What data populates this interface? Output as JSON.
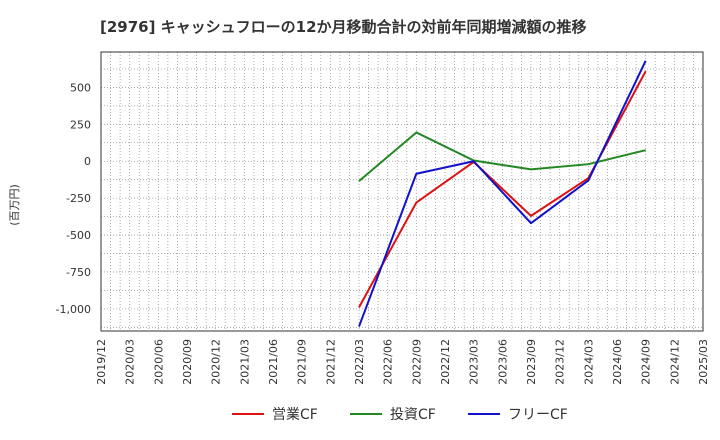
{
  "chart_data": {
    "type": "line",
    "title": "[2976]  キャッシュフローの12か月移動合計の対前年同期増減額の推移",
    "ylabel": "(百万円)",
    "xlabel": "",
    "ylim": [
      -1150,
      740
    ],
    "y_ticks": [
      500,
      250,
      0,
      -250,
      -500,
      -750,
      -1000
    ],
    "y_tick_labels": [
      "500",
      "250",
      "0",
      "-250",
      "-500",
      "-750",
      "-1,000"
    ],
    "categories": [
      "2019/12",
      "2020/03",
      "2020/06",
      "2020/09",
      "2020/12",
      "2021/03",
      "2021/06",
      "2021/09",
      "2021/12",
      "2022/03",
      "2022/06",
      "2022/09",
      "2022/12",
      "2023/03",
      "2023/06",
      "2023/09",
      "2023/12",
      "2024/03",
      "2024/06",
      "2024/09",
      "2024/12",
      "2025/03"
    ],
    "series": [
      {
        "name": "営業CF",
        "color": "#dd1111",
        "points": [
          {
            "x": "2022/03",
            "y": -990
          },
          {
            "x": "2022/09",
            "y": -280
          },
          {
            "x": "2023/03",
            "y": -5
          },
          {
            "x": "2023/09",
            "y": -370
          },
          {
            "x": "2024/03",
            "y": -115
          },
          {
            "x": "2024/09",
            "y": 610
          }
        ]
      },
      {
        "name": "投資CF",
        "color": "#228822",
        "points": [
          {
            "x": "2022/03",
            "y": -135
          },
          {
            "x": "2022/09",
            "y": 195
          },
          {
            "x": "2023/03",
            "y": 5
          },
          {
            "x": "2023/09",
            "y": -55
          },
          {
            "x": "2024/03",
            "y": -20
          },
          {
            "x": "2024/09",
            "y": 75
          }
        ]
      },
      {
        "name": "フリーCF",
        "color": "#1111cc",
        "points": [
          {
            "x": "2022/03",
            "y": -1120
          },
          {
            "x": "2022/09",
            "y": -85
          },
          {
            "x": "2023/03",
            "y": 0
          },
          {
            "x": "2023/09",
            "y": -420
          },
          {
            "x": "2024/03",
            "y": -130
          },
          {
            "x": "2024/09",
            "y": 680
          }
        ]
      }
    ],
    "grid": true,
    "legend_position": "bottom-center"
  }
}
